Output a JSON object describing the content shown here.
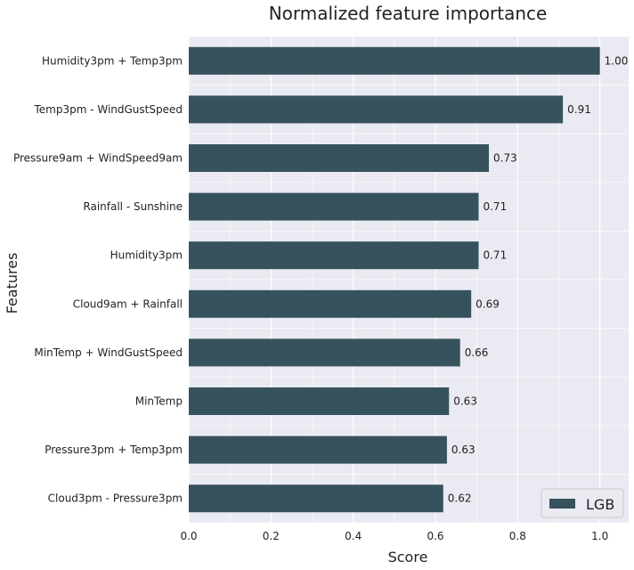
{
  "chart_data": {
    "type": "bar",
    "orientation": "horizontal",
    "title": "Normalized feature importance",
    "xlabel": "Score",
    "ylabel": "Features",
    "xlim": [
      0.0,
      1.07
    ],
    "xticks": [
      0.0,
      0.2,
      0.4,
      0.6,
      0.8,
      1.0
    ],
    "xtick_labels": [
      "0.0",
      "0.2",
      "0.4",
      "0.6",
      "0.8",
      "1.0"
    ],
    "grid": true,
    "legend_position": "bottom-right",
    "colors": {
      "bar": "#36525c",
      "plot_background": "#eaeaf2",
      "grid": "#ffffff"
    },
    "categories": [
      "Humidity3pm + Temp3pm",
      "Temp3pm - WindGustSpeed",
      "Pressure9am + WindSpeed9am",
      "Rainfall - Sunshine",
      "Humidity3pm",
      "Cloud9am + Rainfall",
      "MinTemp + WindGustSpeed",
      "MinTemp",
      "Pressure3pm + Temp3pm",
      "Cloud3pm - Pressure3pm"
    ],
    "series": [
      {
        "name": "LGB",
        "values": [
          1.0,
          0.91,
          0.73,
          0.705,
          0.705,
          0.687,
          0.66,
          0.633,
          0.628,
          0.619
        ],
        "data_labels": [
          "1.00",
          "0.91",
          "0.73",
          "0.71",
          "0.71",
          "0.69",
          "0.66",
          "0.63",
          "0.63",
          "0.62"
        ]
      }
    ]
  }
}
